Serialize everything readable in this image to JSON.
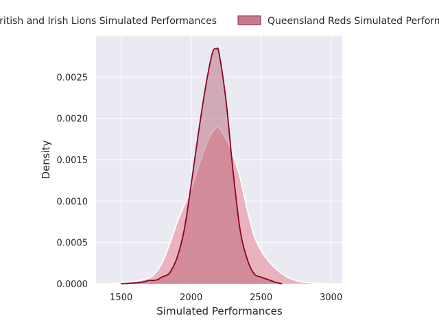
{
  "chart_data": {
    "type": "area",
    "title": "",
    "xlabel": "Simulated Performances",
    "ylabel": "Density",
    "xlim": [
      1320,
      3080
    ],
    "ylim": [
      0,
      0.003
    ],
    "xticks": [
      1500,
      2000,
      2500,
      3000
    ],
    "yticks": [
      0.0,
      0.0005,
      0.001,
      0.0015,
      0.002,
      0.0025
    ],
    "ytick_labels": [
      "0.0000",
      "0.0005",
      "0.0010",
      "0.0015",
      "0.0020",
      "0.0025"
    ],
    "grid": true,
    "legend": "top",
    "series": [
      {
        "name": "British and Irish Lions Simulated Performances",
        "line_color": "#ffffff",
        "fill_color": "#e8838f",
        "fill_opacity": 0.55,
        "x": [
          1400,
          1500,
          1600,
          1700,
          1750,
          1800,
          1850,
          1900,
          1950,
          2000,
          2050,
          2100,
          2150,
          2185,
          2200,
          2250,
          2300,
          2350,
          2400,
          2450,
          2500,
          2550,
          2600,
          2650,
          2700,
          2750,
          2800,
          2900,
          3000
        ],
        "y": [
          0.0,
          1e-05,
          3e-05,
          7e-05,
          0.00014,
          0.00028,
          0.0005,
          0.00074,
          0.00095,
          0.00114,
          0.0014,
          0.00165,
          0.00183,
          0.00189,
          0.00188,
          0.00175,
          0.00155,
          0.00128,
          0.0009,
          0.00058,
          0.0004,
          0.00028,
          0.00019,
          0.00012,
          7e-05,
          4e-05,
          2e-05,
          5e-06,
          0.0
        ]
      },
      {
        "name": "Queensland Reds Simulated Performances",
        "line_color": "#8b0026",
        "fill_color": "#b45a6e",
        "fill_opacity": 0.45,
        "x": [
          1500,
          1600,
          1650,
          1700,
          1730,
          1760,
          1790,
          1820,
          1850,
          1900,
          1950,
          2000,
          2050,
          2100,
          2150,
          2180,
          2200,
          2250,
          2300,
          2350,
          2400,
          2450,
          2500,
          2550,
          2600,
          2650
        ],
        "y": [
          0.0,
          1e-05,
          2e-05,
          4e-05,
          4e-05,
          5e-05,
          8e-05,
          0.0001,
          0.00014,
          0.00032,
          0.00065,
          0.0012,
          0.0018,
          0.00235,
          0.00278,
          0.00284,
          0.00278,
          0.0022,
          0.00135,
          0.00065,
          0.0003,
          0.00012,
          8e-05,
          5e-05,
          2e-05,
          0.0
        ]
      }
    ]
  }
}
